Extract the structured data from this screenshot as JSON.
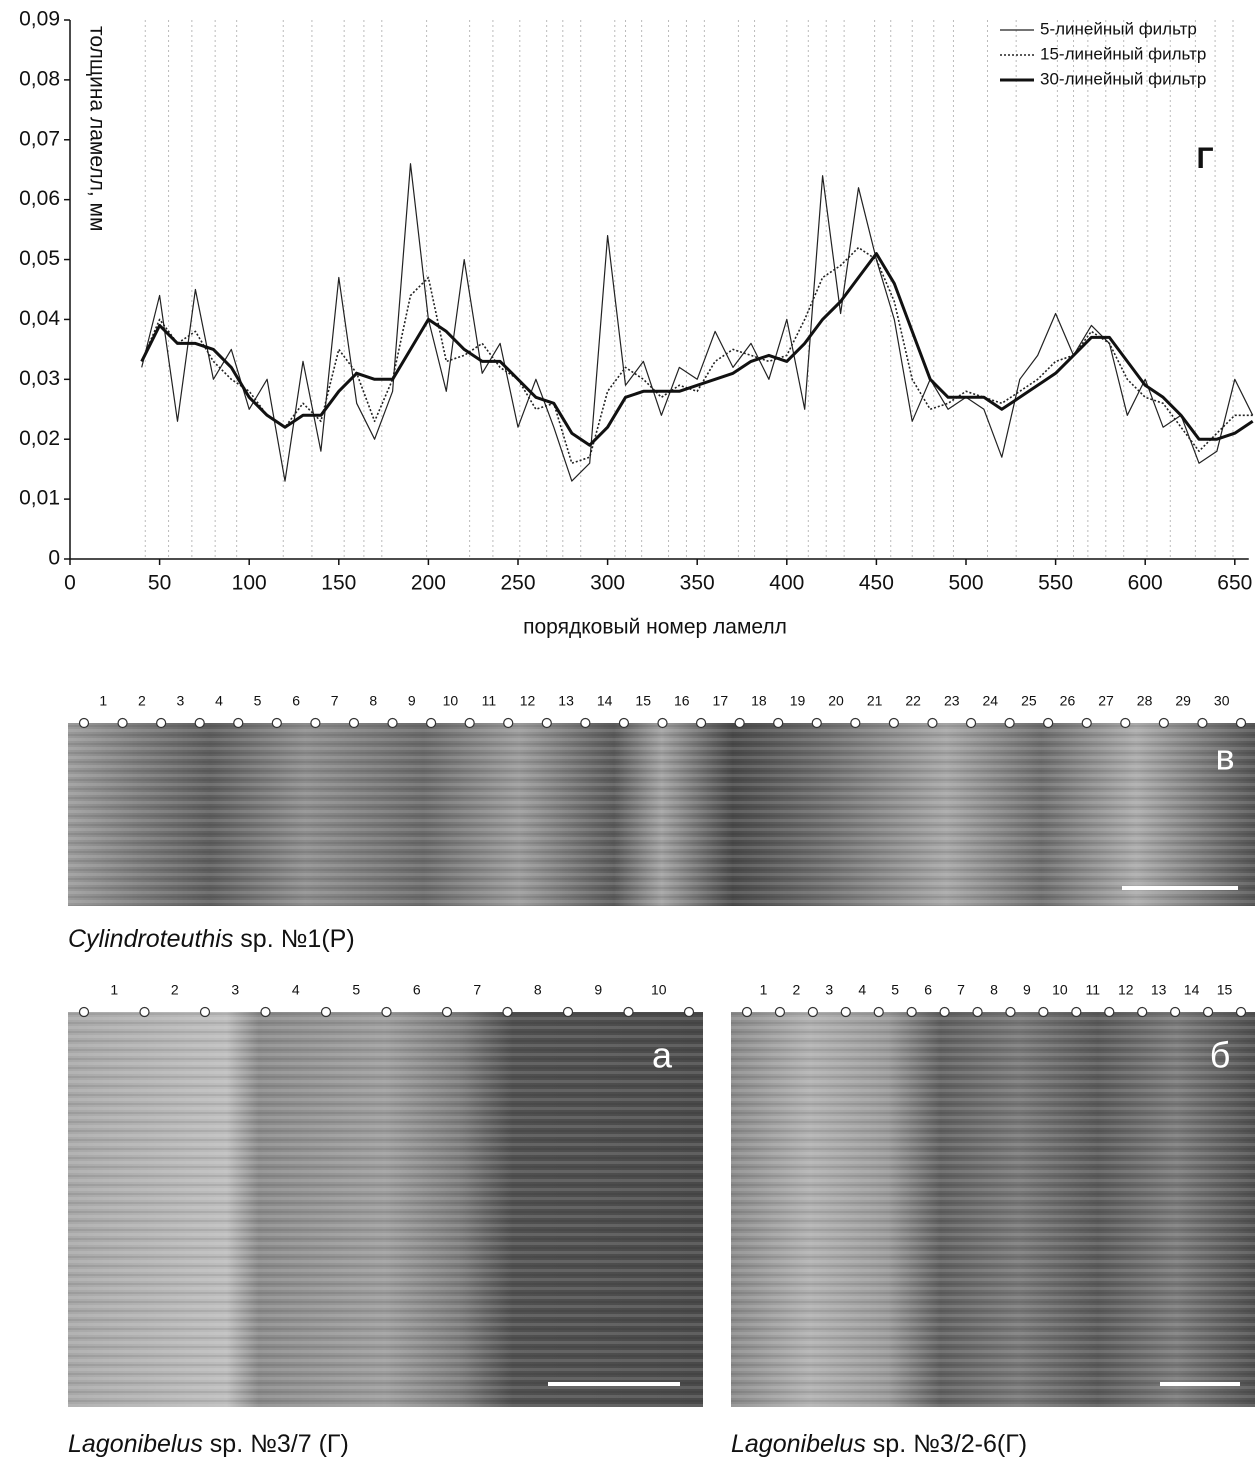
{
  "chart_data": {
    "type": "line",
    "x_label": "порядковый номер ламелл",
    "y_label": "толщина ламелл, мм",
    "panel_letter": "Г",
    "xlim": [
      0,
      655
    ],
    "ylim": [
      0,
      0.09
    ],
    "xticks": [
      0,
      50,
      100,
      150,
      200,
      250,
      300,
      350,
      400,
      450,
      500,
      550,
      600,
      650
    ],
    "yticks": [
      0,
      {
        "value": 0.01,
        "label": "0,01"
      },
      {
        "value": 0.02,
        "label": "0,02"
      },
      {
        "value": 0.03,
        "label": "0,03"
      },
      {
        "value": 0.04,
        "label": "0,04"
      },
      {
        "value": 0.05,
        "label": "0,05"
      },
      {
        "value": 0.06,
        "label": "0,06"
      },
      {
        "value": 0.07,
        "label": "0,07"
      },
      {
        "value": 0.08,
        "label": "0,08"
      },
      {
        "value": 0.09,
        "label": "0,09"
      }
    ],
    "boundaries": [
      42,
      55,
      68,
      81,
      93,
      119,
      135,
      153,
      164,
      174,
      199,
      223,
      236,
      251,
      266,
      275,
      285,
      304,
      310,
      319,
      334,
      344,
      354,
      373,
      382,
      400,
      412,
      422,
      432,
      449,
      458,
      470,
      482,
      493,
      512,
      528,
      551,
      560,
      568,
      578,
      588,
      601,
      614,
      628,
      639,
      649
    ],
    "x": [
      40,
      50,
      60,
      70,
      80,
      90,
      100,
      110,
      120,
      130,
      140,
      150,
      160,
      170,
      180,
      190,
      200,
      210,
      220,
      230,
      240,
      250,
      260,
      270,
      280,
      290,
      300,
      310,
      320,
      330,
      340,
      350,
      360,
      370,
      380,
      390,
      400,
      410,
      420,
      430,
      440,
      450,
      460,
      470,
      480,
      490,
      500,
      510,
      520,
      530,
      540,
      550,
      560,
      570,
      580,
      590,
      600,
      610,
      620,
      630,
      640,
      650,
      660
    ],
    "legend": "upper right",
    "series": [
      {
        "name": "5-линейный фильтр",
        "color": "#222222",
        "style": "thin",
        "values": [
          0.032,
          0.044,
          0.023,
          0.045,
          0.03,
          0.035,
          0.025,
          0.03,
          0.013,
          0.033,
          0.018,
          0.047,
          0.026,
          0.02,
          0.028,
          0.066,
          0.04,
          0.028,
          0.05,
          0.031,
          0.036,
          0.022,
          0.03,
          0.022,
          0.013,
          0.016,
          0.054,
          0.029,
          0.033,
          0.024,
          0.032,
          0.03,
          0.038,
          0.032,
          0.036,
          0.03,
          0.04,
          0.025,
          0.064,
          0.041,
          0.062,
          0.05,
          0.04,
          0.023,
          0.03,
          0.025,
          0.027,
          0.025,
          0.017,
          0.03,
          0.034,
          0.041,
          0.034,
          0.039,
          0.036,
          0.024,
          0.03,
          0.022,
          0.024,
          0.016,
          0.018,
          0.03,
          0.024
        ]
      },
      {
        "name": "15-линейный фильтр",
        "color": "#222222",
        "style": "dotted",
        "values": [
          0.033,
          0.04,
          0.036,
          0.038,
          0.033,
          0.03,
          0.028,
          0.024,
          0.022,
          0.026,
          0.023,
          0.035,
          0.031,
          0.023,
          0.03,
          0.044,
          0.047,
          0.033,
          0.034,
          0.036,
          0.032,
          0.03,
          0.025,
          0.026,
          0.016,
          0.017,
          0.028,
          0.032,
          0.03,
          0.027,
          0.029,
          0.028,
          0.033,
          0.035,
          0.034,
          0.033,
          0.034,
          0.04,
          0.047,
          0.049,
          0.052,
          0.05,
          0.043,
          0.03,
          0.025,
          0.026,
          0.028,
          0.027,
          0.026,
          0.028,
          0.03,
          0.033,
          0.034,
          0.038,
          0.036,
          0.03,
          0.027,
          0.026,
          0.022,
          0.018,
          0.021,
          0.024,
          0.024
        ]
      },
      {
        "name": "30-линейный фильтр",
        "color": "#111111",
        "style": "thick",
        "values": [
          0.033,
          0.039,
          0.036,
          0.036,
          0.035,
          0.032,
          0.027,
          0.024,
          0.022,
          0.024,
          0.024,
          0.028,
          0.031,
          0.03,
          0.03,
          0.035,
          0.04,
          0.038,
          0.035,
          0.033,
          0.033,
          0.03,
          0.027,
          0.026,
          0.021,
          0.019,
          0.022,
          0.027,
          0.028,
          0.028,
          0.028,
          0.029,
          0.03,
          0.031,
          0.033,
          0.034,
          0.033,
          0.036,
          0.04,
          0.043,
          0.047,
          0.051,
          0.046,
          0.038,
          0.03,
          0.027,
          0.027,
          0.027,
          0.025,
          0.027,
          0.029,
          0.031,
          0.034,
          0.037,
          0.037,
          0.033,
          0.029,
          0.027,
          0.024,
          0.02,
          0.02,
          0.021,
          0.023
        ]
      }
    ]
  },
  "panels": [
    {
      "letter": "в",
      "genus": "Cylindroteuthis",
      "rest": " sp. №1(Р)",
      "markers": [
        1,
        2,
        3,
        4,
        5,
        6,
        7,
        8,
        9,
        10,
        11,
        12,
        13,
        14,
        15,
        16,
        17,
        18,
        19,
        20,
        21,
        22,
        23,
        24,
        25,
        26,
        27,
        28,
        29,
        30
      ]
    },
    {
      "letter": "а",
      "genus": "Lagonibelus",
      "rest": " sp. №3/7 (Г)",
      "markers": [
        1,
        2,
        3,
        4,
        5,
        6,
        7,
        8,
        9,
        10
      ]
    },
    {
      "letter": "б",
      "genus": "Lagonibelus",
      "rest": " sp. №3/2-6(Г)",
      "markers": [
        1,
        2,
        3,
        4,
        5,
        6,
        7,
        8,
        9,
        10,
        11,
        12,
        13,
        14,
        15
      ]
    }
  ]
}
